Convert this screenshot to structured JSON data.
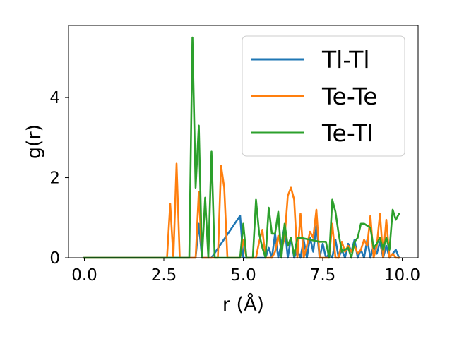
{
  "chart_data": {
    "type": "line",
    "title": "",
    "xlabel": "r (Å)",
    "ylabel": "g(r)",
    "xlim": [
      -0.5,
      10.5
    ],
    "ylim": [
      0,
      5.8
    ],
    "xticks": [
      0.0,
      2.5,
      5.0,
      7.5,
      10.0
    ],
    "xtick_labels": [
      "0.0",
      "2.5",
      "5.0",
      "7.5",
      "10.0"
    ],
    "yticks": [
      0,
      2,
      4
    ],
    "ytick_labels": [
      "0",
      "2",
      "4"
    ],
    "grid": false,
    "legend_position": "top-right",
    "series": [
      {
        "name": "Tl-Tl",
        "color": "#1f77b4",
        "x": [
          0.0,
          3.5,
          3.6,
          3.7,
          3.8,
          3.9,
          4.0,
          4.9,
          5.0,
          5.1,
          5.6,
          5.7,
          5.8,
          5.9,
          6.0,
          6.1,
          6.2,
          6.3,
          6.4,
          6.5,
          6.6,
          6.7,
          6.8,
          6.9,
          7.0,
          7.1,
          7.2,
          7.3,
          7.4,
          7.5,
          7.6,
          7.7,
          7.8,
          7.9,
          8.0,
          8.1,
          8.2,
          8.3,
          8.4,
          8.5,
          8.6,
          8.7,
          8.8,
          8.9,
          9.0,
          9.1,
          9.2,
          9.3,
          9.4,
          9.5,
          9.6,
          9.7,
          9.8,
          9.9
        ],
        "y": [
          0,
          0,
          0.85,
          0,
          0,
          0,
          0,
          1.05,
          0,
          0,
          0,
          0,
          0.25,
          0,
          0.6,
          0,
          0.35,
          0.8,
          0,
          0.5,
          0,
          0.2,
          0,
          0.45,
          0,
          0.5,
          0.15,
          0.8,
          0,
          0.35,
          0,
          0.1,
          0,
          0.45,
          0,
          0.2,
          0,
          0.35,
          0.15,
          0.45,
          0,
          0.2,
          0,
          0.45,
          0,
          0.3,
          0.1,
          0.4,
          0,
          0.3,
          0,
          0.1,
          0.2,
          0
        ]
      },
      {
        "name": "Te-Te",
        "color": "#ff7f0e",
        "x": [
          0.0,
          2.6,
          2.7,
          2.8,
          2.9,
          3.0,
          3.1,
          3.4,
          3.5,
          3.6,
          3.7,
          3.8,
          3.9,
          4.0,
          4.1,
          4.2,
          4.3,
          4.4,
          4.5,
          4.6,
          4.7,
          4.8,
          4.9,
          5.0,
          5.1,
          5.2,
          5.3,
          5.4,
          5.5,
          5.6,
          5.7,
          5.8,
          5.9,
          6.0,
          6.1,
          6.2,
          6.3,
          6.4,
          6.5,
          6.6,
          6.7,
          6.8,
          6.9,
          7.0,
          7.1,
          7.2,
          7.3,
          7.4,
          7.5,
          7.6,
          7.7,
          7.8,
          7.9,
          8.0,
          8.1,
          8.2,
          8.3,
          8.4,
          8.5,
          8.6,
          8.7,
          8.8,
          8.9,
          9.0,
          9.1,
          9.2,
          9.3,
          9.4,
          9.5,
          9.6,
          9.7,
          9.8,
          9.9
        ],
        "y": [
          0,
          0,
          1.35,
          0,
          2.35,
          0,
          0,
          0,
          0,
          1.65,
          0,
          0,
          0,
          0,
          0,
          0,
          2.3,
          1.75,
          0,
          0,
          0,
          0,
          0,
          0.45,
          0,
          0,
          0,
          0,
          0.4,
          0.7,
          0,
          0,
          0,
          0.15,
          0.55,
          0.2,
          0.5,
          1.55,
          1.75,
          1.45,
          0,
          1.1,
          0,
          0.3,
          0.65,
          0.5,
          1.2,
          0,
          0,
          0,
          0,
          0.85,
          0,
          0,
          0.4,
          0.15,
          0.3,
          0.15,
          0.3,
          0.1,
          0.2,
          0.45,
          0.3,
          1.05,
          0,
          0.3,
          1.1,
          0,
          0.95,
          0,
          0.1,
          0,
          0
        ]
      },
      {
        "name": "Te-Tl",
        "color": "#2ca02c",
        "x": [
          0.0,
          3.3,
          3.4,
          3.5,
          3.6,
          3.7,
          3.8,
          3.9,
          4.0,
          4.1,
          4.9,
          5.0,
          5.1,
          5.3,
          5.4,
          5.5,
          5.6,
          5.7,
          5.8,
          5.9,
          6.0,
          6.1,
          6.2,
          6.3,
          6.4,
          6.5,
          6.6,
          6.7,
          6.8,
          7.4,
          7.5,
          7.6,
          7.7,
          7.8,
          7.9,
          8.0,
          8.1,
          8.2,
          8.3,
          8.4,
          8.5,
          8.6,
          8.7,
          8.8,
          8.9,
          9.0,
          9.1,
          9.2,
          9.3,
          9.4,
          9.5,
          9.6,
          9.7,
          9.8,
          9.9
        ],
        "y": [
          0,
          0,
          5.5,
          1.75,
          3.3,
          0,
          1.5,
          0,
          2.65,
          0,
          0,
          0.85,
          0,
          0,
          1.45,
          0.6,
          0.25,
          0,
          1.25,
          0.6,
          0.6,
          1.15,
          0,
          0.85,
          0.3,
          0.5,
          0.05,
          0.5,
          0.5,
          0.4,
          0.4,
          0.4,
          0,
          1.45,
          1.15,
          0.6,
          0.15,
          0.2,
          0.25,
          0,
          0.4,
          0.5,
          0.85,
          0.85,
          0.8,
          0.75,
          0.25,
          0.35,
          0.5,
          0.2,
          0.5,
          0.2,
          1.2,
          0.95,
          1.1
        ]
      }
    ]
  }
}
